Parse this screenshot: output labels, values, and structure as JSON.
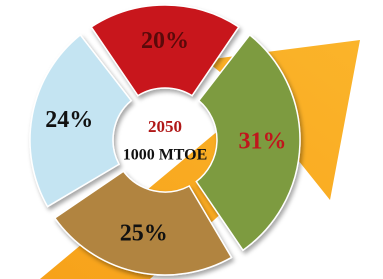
{
  "chart_data": {
    "type": "donut",
    "center_title": "2050",
    "center_subtitle": "1000 MTOE",
    "values": [
      20,
      31,
      25,
      24
    ],
    "value_labels": [
      "20%",
      "31%",
      "25%",
      "24%"
    ],
    "colors": [
      "#c8141a",
      "#7d9b3f",
      "#b1843f",
      "#c4e4f2"
    ],
    "label_colors": [
      "#5a0a0a",
      "#c0161c",
      "#111111",
      "#111111"
    ]
  }
}
